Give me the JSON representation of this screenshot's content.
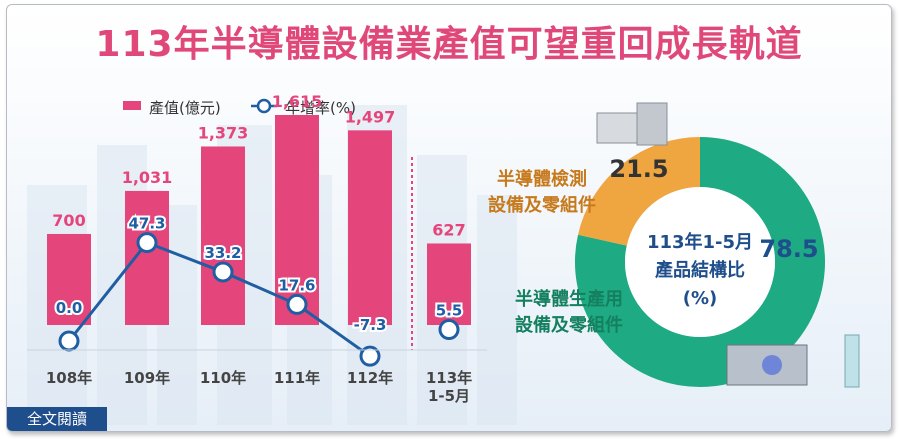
{
  "title": "113年半導體設備業產值可望重回成長軌道",
  "colors": {
    "bar": "#e4457a",
    "line": "#1f5ea3",
    "donut_major": "#1eaa83",
    "donut_minor": "#f0a640",
    "title": "#e0487a"
  },
  "chart_data": [
    {
      "type": "bar",
      "categories": [
        "108年",
        "109年",
        "110年",
        "111年",
        "112年",
        "113年\n1-5月"
      ],
      "series": [
        {
          "name": "產值(億元)",
          "type": "bar",
          "values": [
            700,
            1031,
            1373,
            1615,
            1497,
            627
          ],
          "labels": [
            "700",
            "1,031",
            "1,373",
            "1,615",
            "1,497",
            "627"
          ]
        },
        {
          "name": "年增率(%)",
          "type": "line",
          "values": [
            0.0,
            47.3,
            33.2,
            17.6,
            -7.3,
            5.5
          ],
          "labels": [
            "0.0",
            "47.3",
            "33.2",
            "17.6",
            "-7.3",
            "5.5"
          ]
        }
      ],
      "legend": "top-left"
    },
    {
      "type": "pie",
      "title": "113年1-5月產品結構比(%)",
      "center_label": [
        "113年1-5月",
        "產品結構比",
        "(%)"
      ],
      "slices": [
        {
          "label": "半導體生產用設備及零組件",
          "value": 78.5,
          "label_lines": [
            "半導體生產用",
            "設備及零組件"
          ],
          "value_label": "78.5"
        },
        {
          "label": "半導體檢測設備及零組件",
          "value": 21.5,
          "label_lines": [
            "半導體檢測",
            "設備及零組件"
          ],
          "value_label": "21.5"
        }
      ]
    }
  ],
  "footer": {
    "full_text_link": "全文閱讀"
  }
}
